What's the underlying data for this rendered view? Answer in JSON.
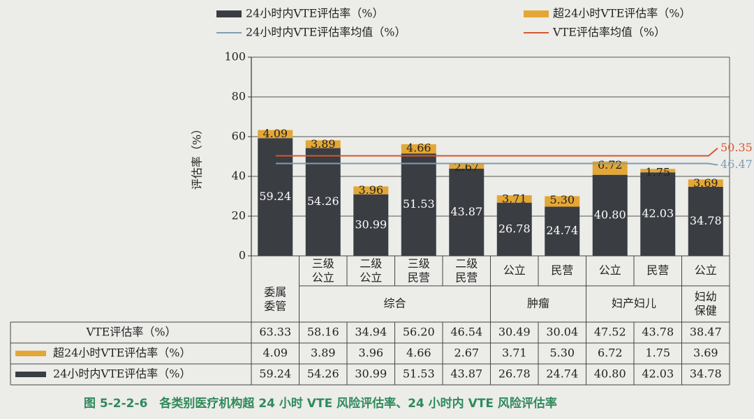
{
  "chart_data": {
    "type": "stacked_bar",
    "title": "图 5-2-2-6　各类别医疗机构超 24 小时 VTE 风险评估率、24 小时内 VTE 风险评估率",
    "ylabel": "评估率（%）",
    "ylim": [
      0,
      100
    ],
    "yticks": [
      0,
      20,
      40,
      60,
      80,
      100
    ],
    "grid": true,
    "groups": [
      {
        "name": "委属委管",
        "categories": [
          null
        ]
      },
      {
        "name": "综合",
        "categories": [
          "三级公立",
          "二级公立",
          "三级民营",
          "二级民营"
        ]
      },
      {
        "name": "肿瘤",
        "categories": [
          "公立",
          "民营"
        ]
      },
      {
        "name": "妇产妇儿",
        "categories": [
          "公立",
          "民营"
        ]
      },
      {
        "name": "妇幼保健",
        "categories": [
          "公立"
        ]
      }
    ],
    "series": [
      {
        "name": "24小时内VTE评估率（%）",
        "color": "#3a3d42",
        "values": [
          59.24,
          54.26,
          30.99,
          51.53,
          43.87,
          26.78,
          24.74,
          40.8,
          42.03,
          34.78
        ],
        "value_labels": [
          "59.24",
          "54.26",
          "30.99",
          "51.53",
          "43.87",
          "26.78",
          "24.74",
          "40.80",
          "42.03",
          "34.78"
        ]
      },
      {
        "name": "超24小时VTE评估率（%）",
        "color": "#e3a735",
        "values": [
          4.09,
          3.89,
          3.96,
          4.66,
          2.67,
          3.71,
          5.3,
          6.72,
          1.75,
          3.69
        ],
        "value_labels": [
          "4.09",
          "3.89",
          "3.96",
          "4.66",
          "2.67",
          "3.71",
          "5.30",
          "6.72",
          "1.75",
          "3.69"
        ]
      }
    ],
    "reference_lines": [
      {
        "name": "24小时内VTE评估率均值（%）",
        "value": 46.47,
        "color": "#7f9db5"
      },
      {
        "name": "VTE评估率均值（%）",
        "value": 50.35,
        "color": "#d4572f"
      }
    ],
    "table": {
      "total": {
        "name": "VTE评估率（%）",
        "labels": [
          "63.33",
          "58.16",
          "34.94",
          "56.20",
          "46.54",
          "30.49",
          "30.04",
          "47.52",
          "43.78",
          "38.47"
        ]
      }
    }
  }
}
